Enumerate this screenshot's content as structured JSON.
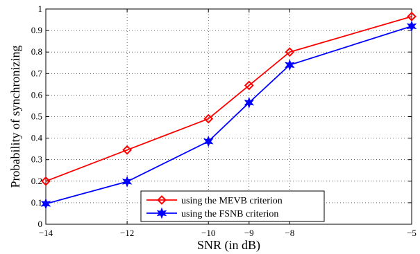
{
  "chart_data": {
    "type": "line",
    "title": "",
    "xlabel": "SNR  (in dB)",
    "ylabel": "Probability of synchronizing",
    "xlim": [
      -14,
      -5
    ],
    "ylim": [
      0,
      1
    ],
    "grid": true,
    "legend_position": "bottom-right",
    "x_ticks": [
      -14,
      -12,
      -10,
      -9,
      -8,
      -5
    ],
    "x_tick_labels": [
      "−14",
      "−12",
      "−10",
      "−9",
      "−8",
      "−5"
    ],
    "y_ticks": [
      0,
      0.1,
      0.2,
      0.3,
      0.4,
      0.5,
      0.6,
      0.7,
      0.8,
      0.9,
      1
    ],
    "y_tick_labels": [
      "0",
      "0.1",
      "0.2",
      "0.3",
      "0.4",
      "0.5",
      "0.6",
      "0.7",
      "0.8",
      "0.9",
      "1"
    ],
    "x": [
      -14,
      -12,
      -10,
      -9,
      -8,
      -5
    ],
    "series": [
      {
        "name": "using the MEVB criterion",
        "values": [
          0.2,
          0.345,
          0.49,
          0.645,
          0.8,
          0.965
        ],
        "color": "#ff0000",
        "marker": "diamond"
      },
      {
        "name": "using the FSNB criterion",
        "values": [
          0.095,
          0.198,
          0.385,
          0.565,
          0.74,
          0.92
        ],
        "color": "#0000ff",
        "marker": "star"
      }
    ]
  }
}
